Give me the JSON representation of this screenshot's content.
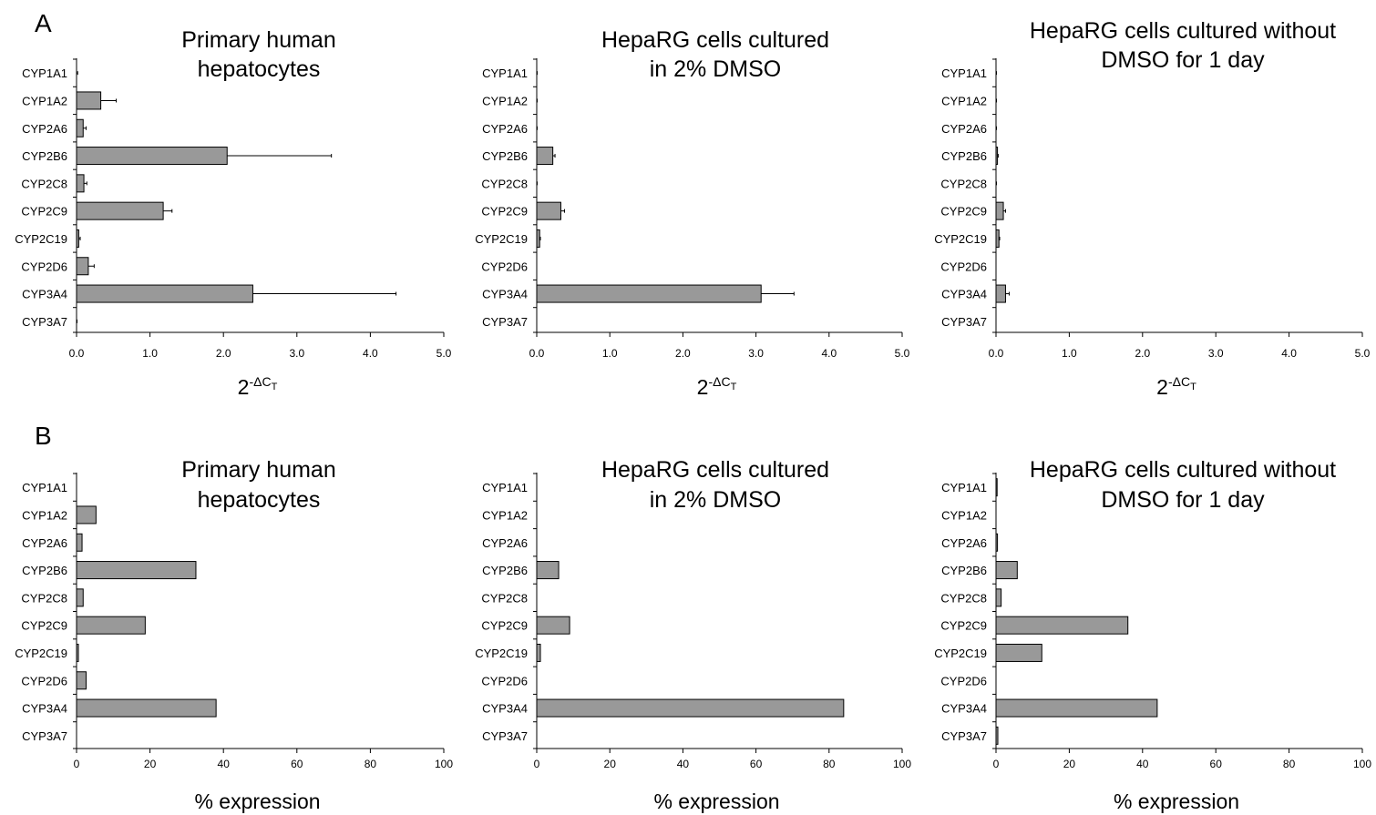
{
  "panels": {
    "A": "A",
    "B": "B"
  },
  "chart_data": [
    {
      "type": "bar",
      "orientation": "horizontal",
      "title": [
        "Primary human",
        "hepatocytes"
      ],
      "categories": [
        "CYP1A1",
        "CYP1A2",
        "CYP2A6",
        "CYP2B6",
        "CYP2C8",
        "CYP2C9",
        "CYP2C19",
        "CYP2D6",
        "CYP3A4",
        "CYP3A7"
      ],
      "values": [
        0.005,
        0.33,
        0.09,
        2.05,
        0.1,
        1.18,
        0.03,
        0.16,
        2.4,
        0.002
      ],
      "errors": [
        0.01,
        0.21,
        0.04,
        1.42,
        0.04,
        0.12,
        0.02,
        0.08,
        1.95,
        0.005
      ],
      "xlabel": "2-ΔCT",
      "xlim": [
        0,
        5
      ],
      "xticks": [
        "0.0",
        "1.0",
        "2.0",
        "3.0",
        "4.0",
        "5.0"
      ],
      "bar_color": "#999999"
    },
    {
      "type": "bar",
      "orientation": "horizontal",
      "title": [
        "HepaRG cells cultured",
        "in 2% DMSO"
      ],
      "categories": [
        "CYP1A1",
        "CYP1A2",
        "CYP2A6",
        "CYP2B6",
        "CYP2C8",
        "CYP2C9",
        "CYP2C19",
        "CYP2D6",
        "CYP3A4",
        "CYP3A7"
      ],
      "values": [
        0.002,
        0.002,
        0.002,
        0.22,
        0.002,
        0.33,
        0.04,
        0.0,
        3.07,
        0.0
      ],
      "errors": [
        0.004,
        0.004,
        0.004,
        0.03,
        0.004,
        0.05,
        0.01,
        0.0,
        0.45,
        0.0
      ],
      "xlabel": "2-ΔCT",
      "xlim": [
        0,
        5
      ],
      "xticks": [
        "0.0",
        "1.0",
        "2.0",
        "3.0",
        "4.0",
        "5.0"
      ],
      "bar_color": "#999999"
    },
    {
      "type": "bar",
      "orientation": "horizontal",
      "title": [
        "HepaRG cells cultured without",
        "DMSO for 1 day"
      ],
      "categories": [
        "CYP1A1",
        "CYP1A2",
        "CYP2A6",
        "CYP2B6",
        "CYP2C8",
        "CYP2C9",
        "CYP2C19",
        "CYP2D6",
        "CYP3A4",
        "CYP3A7"
      ],
      "values": [
        0.002,
        0.002,
        0.002,
        0.02,
        0.002,
        0.1,
        0.04,
        0.0,
        0.13,
        0.0
      ],
      "errors": [
        0.004,
        0.004,
        0.004,
        0.01,
        0.004,
        0.03,
        0.01,
        0.0,
        0.05,
        0.0
      ],
      "xlabel": "2-ΔCT",
      "xlim": [
        0,
        5
      ],
      "xticks": [
        "0.0",
        "1.0",
        "2.0",
        "3.0",
        "4.0",
        "5.0"
      ],
      "bar_color": "#999999"
    },
    {
      "type": "bar",
      "orientation": "horizontal",
      "title": [
        "Primary human",
        "hepatocytes"
      ],
      "categories": [
        "CYP1A1",
        "CYP1A2",
        "CYP2A6",
        "CYP2B6",
        "CYP2C8",
        "CYP2C9",
        "CYP2C19",
        "CYP2D6",
        "CYP3A4",
        "CYP3A7"
      ],
      "values": [
        0.1,
        5.3,
        1.5,
        32.5,
        1.8,
        18.7,
        0.5,
        2.6,
        38.0,
        0.0
      ],
      "xlabel": "% expression",
      "xlim": [
        0,
        100
      ],
      "xticks": [
        "0",
        "20",
        "40",
        "60",
        "80",
        "100"
      ],
      "bar_color": "#999999"
    },
    {
      "type": "bar",
      "orientation": "horizontal",
      "title": [
        "HepaRG cells cultured",
        "in 2% DMSO"
      ],
      "categories": [
        "CYP1A1",
        "CYP1A2",
        "CYP2A6",
        "CYP2B6",
        "CYP2C8",
        "CYP2C9",
        "CYP2C19",
        "CYP2D6",
        "CYP3A4",
        "CYP3A7"
      ],
      "values": [
        0.0,
        0.0,
        0.0,
        6.0,
        0.0,
        9.0,
        1.0,
        0.0,
        84.0,
        0.0
      ],
      "xlabel": "% expression",
      "xlim": [
        0,
        100
      ],
      "xticks": [
        "0",
        "20",
        "40",
        "60",
        "80",
        "100"
      ],
      "bar_color": "#999999"
    },
    {
      "type": "bar",
      "orientation": "horizontal",
      "title": [
        "HepaRG cells cultured without",
        "DMSO for 1 day"
      ],
      "categories": [
        "CYP1A1",
        "CYP1A2",
        "CYP2A6",
        "CYP2B6",
        "CYP2C8",
        "CYP2C9",
        "CYP2C19",
        "CYP2D6",
        "CYP3A4",
        "CYP3A7"
      ],
      "values": [
        0.3,
        0.1,
        0.4,
        5.8,
        1.4,
        36.0,
        12.5,
        0.0,
        44.0,
        0.5
      ],
      "xlabel": "% expression",
      "xlim": [
        0,
        100
      ],
      "xticks": [
        "0",
        "20",
        "40",
        "60",
        "80",
        "100"
      ],
      "bar_color": "#999999"
    }
  ]
}
